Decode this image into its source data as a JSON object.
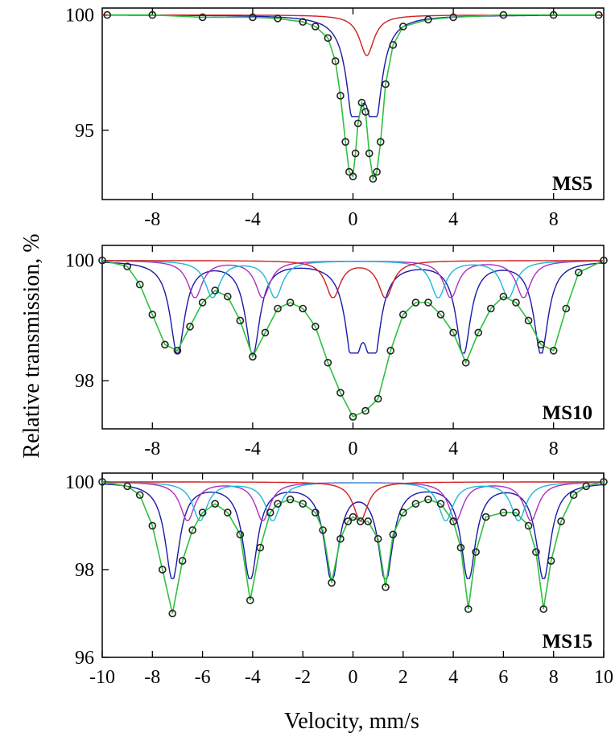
{
  "figure": {
    "ylabel": "Relative transmission, %",
    "xlabel": "Velocity, mm/s"
  },
  "chart_data": [
    {
      "type": "scatter",
      "panel_label": "MS5",
      "xlim": [
        -10,
        10
      ],
      "ylim": [
        92,
        100.3
      ],
      "xticks": [
        -8,
        -4,
        0,
        4,
        8
      ],
      "yticks": [
        100,
        95
      ],
      "grid": false,
      "series": [
        {
          "kind": "measured",
          "color": "#222222",
          "x": [
            -9.8,
            -8,
            -6,
            -4,
            -3,
            -2,
            -1.5,
            -1,
            -0.7,
            -0.5,
            -0.3,
            -0.15,
            0,
            0.1,
            0.2,
            0.35,
            0.5,
            0.65,
            0.8,
            0.95,
            1.1,
            1.3,
            1.6,
            2,
            3,
            4,
            6,
            8,
            9.8
          ],
          "y": [
            100,
            100,
            99.9,
            99.9,
            99.85,
            99.7,
            99.5,
            99,
            98,
            96.5,
            94.5,
            93.2,
            93,
            94,
            95.3,
            96.2,
            95.8,
            94,
            92.9,
            93.2,
            94.5,
            97,
            98.7,
            99.5,
            99.8,
            99.9,
            100,
            100,
            100
          ]
        }
      ],
      "components": [
        {
          "color": "#1a1aa8",
          "lines": [
            0.05,
            0.85
          ]
        },
        {
          "color": "#d02020",
          "lines": [
            0.55
          ]
        }
      ]
    },
    {
      "type": "scatter",
      "panel_label": "MS10",
      "xlim": [
        -10,
        10
      ],
      "ylim": [
        97.2,
        100.25
      ],
      "xticks": [
        -8,
        -4,
        0,
        4,
        8
      ],
      "yticks": [
        100,
        98
      ],
      "grid": false,
      "series": [
        {
          "kind": "measured",
          "color": "#222222",
          "x": [
            -10,
            -9,
            -8.5,
            -8,
            -7.5,
            -7,
            -6.5,
            -6,
            -5.5,
            -5,
            -4.5,
            -4,
            -3.5,
            -3,
            -2.5,
            -2,
            -1.5,
            -1,
            -0.5,
            0,
            0.5,
            1,
            1.5,
            2,
            2.5,
            3,
            3.5,
            4,
            4.5,
            5,
            5.5,
            6,
            6.5,
            7,
            7.5,
            8,
            8.5,
            9,
            10
          ],
          "y": [
            100,
            99.9,
            99.6,
            99.1,
            98.6,
            98.5,
            98.9,
            99.3,
            99.5,
            99.4,
            99,
            98.4,
            98.8,
            99.2,
            99.3,
            99.2,
            98.9,
            98.3,
            97.8,
            97.4,
            97.5,
            97.7,
            98.5,
            99.1,
            99.3,
            99.3,
            99.1,
            98.8,
            98.3,
            98.8,
            99.2,
            99.4,
            99.3,
            99,
            98.6,
            98.5,
            99.2,
            99.8,
            100
          ]
        }
      ],
      "components": [
        {
          "color": "#1a1aa8",
          "lines": [
            -7,
            -4,
            0,
            0.8,
            4.4,
            7.5
          ]
        },
        {
          "color": "#b030c0",
          "lines": [
            -6.3,
            -3.6,
            3.9,
            6.8
          ]
        },
        {
          "color": "#20b8d8",
          "lines": [
            -5.6,
            -3.1,
            3.4,
            6.2
          ]
        },
        {
          "color": "#d02020",
          "lines": [
            -0.8,
            1.3
          ]
        }
      ]
    },
    {
      "type": "scatter",
      "panel_label": "MS15",
      "xlim": [
        -10,
        10
      ],
      "ylim": [
        96,
        100.2
      ],
      "xticks": [
        -10,
        -8,
        -6,
        -4,
        -2,
        0,
        2,
        4,
        6,
        8,
        10
      ],
      "yticks": [
        100,
        98,
        96
      ],
      "grid": false,
      "series": [
        {
          "kind": "measured",
          "color": "#222222",
          "x": [
            -10,
            -9,
            -8.5,
            -8,
            -7.6,
            -7.2,
            -6.8,
            -6.4,
            -6,
            -5.5,
            -5,
            -4.5,
            -4.1,
            -3.7,
            -3.3,
            -3,
            -2.5,
            -2,
            -1.5,
            -1.2,
            -0.85,
            -0.5,
            -0.2,
            0,
            0.3,
            0.6,
            1,
            1.3,
            1.6,
            2,
            2.5,
            3,
            3.5,
            4,
            4.3,
            4.6,
            4.9,
            5.3,
            6,
            6.5,
            7,
            7.3,
            7.6,
            7.9,
            8.3,
            8.8,
            9.3,
            10
          ],
          "y": [
            100,
            99.9,
            99.7,
            99,
            98,
            97,
            98.2,
            98.9,
            99.3,
            99.5,
            99.3,
            98.8,
            97.3,
            98.5,
            99.3,
            99.5,
            99.6,
            99.5,
            99.3,
            98.9,
            97.7,
            98.7,
            99.1,
            99.2,
            99.1,
            99.1,
            98.7,
            97.6,
            98.8,
            99.3,
            99.5,
            99.6,
            99.5,
            99.1,
            98.5,
            97.1,
            98.4,
            99.2,
            99.3,
            99.3,
            99,
            98.4,
            97.1,
            98.2,
            99.1,
            99.7,
            99.9,
            100
          ]
        }
      ],
      "components": [
        {
          "color": "#1a1aa8",
          "lines": [
            -7.2,
            -4.1,
            -0.85,
            1.3,
            4.6,
            7.6
          ]
        },
        {
          "color": "#b030c0",
          "lines": [
            -6.6,
            -3.6,
            4.1,
            7.1
          ]
        },
        {
          "color": "#20b8d8",
          "lines": [
            -6.1,
            -3.2,
            3.7,
            6.6
          ]
        },
        {
          "color": "#d02020",
          "lines": [
            0.3
          ]
        }
      ]
    }
  ]
}
